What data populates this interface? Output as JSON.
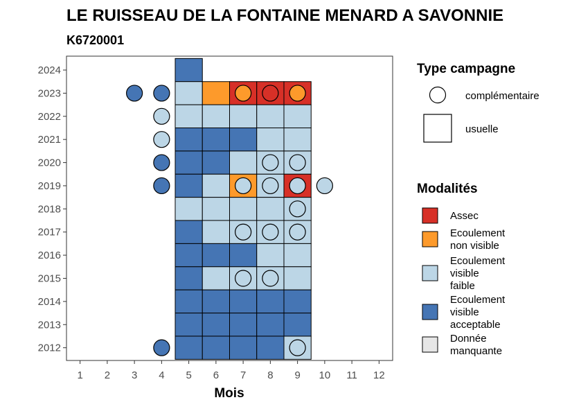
{
  "chart_data": {
    "type": "heatmap",
    "title": "LE RUISSEAU DE LA FONTAINE MENARD A SAVONNIE",
    "subtitle": "K6720001",
    "xlabel": "Mois",
    "ylabel": "",
    "x_ticks": [
      1,
      2,
      3,
      4,
      5,
      6,
      7,
      8,
      9,
      10,
      11,
      12
    ],
    "y_ticks": [
      2012,
      2013,
      2014,
      2015,
      2016,
      2017,
      2018,
      2019,
      2020,
      2021,
      2022,
      2023,
      2024
    ],
    "xlim": [
      0.5,
      12.5
    ],
    "ylim": [
      2011.45,
      2024.6
    ],
    "grid": false,
    "legend_position": "right",
    "modalites": [
      {
        "key": "assec",
        "label": "Assec",
        "color": "#d73027"
      },
      {
        "key": "nonvis",
        "label": "Ecoulement non visible",
        "color": "#fd9a2b"
      },
      {
        "key": "faible",
        "label": "Ecoulement visible faible",
        "color": "#bcd6e6"
      },
      {
        "key": "accept",
        "label": "Ecoulement visible acceptable",
        "color": "#4575b4"
      },
      {
        "key": "manq",
        "label": "Donnée manquante",
        "color": "#e6e6e6"
      }
    ],
    "campagnes": [
      {
        "key": "comp",
        "label": "complémentaire",
        "shape": "circle"
      },
      {
        "key": "usu",
        "label": "usuelle",
        "shape": "square"
      }
    ],
    "legend_titles": {
      "campagne": "Type campagne",
      "modalites": "Modalités"
    },
    "legend_lines": {
      "assec": [
        "Assec"
      ],
      "nonvis": [
        "Ecoulement",
        "non visible"
      ],
      "faible": [
        "Ecoulement",
        "visible",
        "faible"
      ],
      "accept": [
        "Ecoulement",
        "visible",
        "acceptable"
      ],
      "manq": [
        "Donnée",
        "manquante"
      ]
    },
    "points": [
      {
        "year": 2024,
        "month": 5,
        "campaign": "usuelle",
        "modalite": "accept"
      },
      {
        "year": 2023,
        "month": 3,
        "campaign": "complementaire",
        "modalite": "accept"
      },
      {
        "year": 2023,
        "month": 4,
        "campaign": "complementaire",
        "modalite": "accept"
      },
      {
        "year": 2023,
        "month": 5,
        "campaign": "usuelle",
        "modalite": "faible"
      },
      {
        "year": 2023,
        "month": 6,
        "campaign": "usuelle",
        "modalite": "nonvis"
      },
      {
        "year": 2023,
        "month": 7,
        "campaign": "usuelle",
        "modalite": "assec"
      },
      {
        "year": 2023,
        "month": 7,
        "campaign": "complementaire",
        "modalite": "nonvis"
      },
      {
        "year": 2023,
        "month": 8,
        "campaign": "usuelle",
        "modalite": "assec"
      },
      {
        "year": 2023,
        "month": 8,
        "campaign": "complementaire",
        "modalite": "assec"
      },
      {
        "year": 2023,
        "month": 9,
        "campaign": "usuelle",
        "modalite": "assec"
      },
      {
        "year": 2023,
        "month": 9,
        "campaign": "complementaire",
        "modalite": "nonvis"
      },
      {
        "year": 2022,
        "month": 4,
        "campaign": "complementaire",
        "modalite": "faible"
      },
      {
        "year": 2022,
        "month": 5,
        "campaign": "usuelle",
        "modalite": "faible"
      },
      {
        "year": 2022,
        "month": 6,
        "campaign": "usuelle",
        "modalite": "faible"
      },
      {
        "year": 2022,
        "month": 7,
        "campaign": "usuelle",
        "modalite": "faible"
      },
      {
        "year": 2022,
        "month": 8,
        "campaign": "usuelle",
        "modalite": "faible"
      },
      {
        "year": 2022,
        "month": 9,
        "campaign": "usuelle",
        "modalite": "faible"
      },
      {
        "year": 2021,
        "month": 4,
        "campaign": "complementaire",
        "modalite": "faible"
      },
      {
        "year": 2021,
        "month": 5,
        "campaign": "usuelle",
        "modalite": "accept"
      },
      {
        "year": 2021,
        "month": 6,
        "campaign": "usuelle",
        "modalite": "accept"
      },
      {
        "year": 2021,
        "month": 7,
        "campaign": "usuelle",
        "modalite": "accept"
      },
      {
        "year": 2021,
        "month": 8,
        "campaign": "usuelle",
        "modalite": "faible"
      },
      {
        "year": 2021,
        "month": 9,
        "campaign": "usuelle",
        "modalite": "faible"
      },
      {
        "year": 2020,
        "month": 4,
        "campaign": "complementaire",
        "modalite": "accept"
      },
      {
        "year": 2020,
        "month": 5,
        "campaign": "usuelle",
        "modalite": "accept"
      },
      {
        "year": 2020,
        "month": 6,
        "campaign": "usuelle",
        "modalite": "accept"
      },
      {
        "year": 2020,
        "month": 7,
        "campaign": "usuelle",
        "modalite": "faible"
      },
      {
        "year": 2020,
        "month": 8,
        "campaign": "usuelle",
        "modalite": "faible"
      },
      {
        "year": 2020,
        "month": 8,
        "campaign": "complementaire",
        "modalite": "faible"
      },
      {
        "year": 2020,
        "month": 9,
        "campaign": "usuelle",
        "modalite": "faible"
      },
      {
        "year": 2020,
        "month": 9,
        "campaign": "complementaire",
        "modalite": "faible"
      },
      {
        "year": 2019,
        "month": 4,
        "campaign": "complementaire",
        "modalite": "accept"
      },
      {
        "year": 2019,
        "month": 5,
        "campaign": "usuelle",
        "modalite": "accept"
      },
      {
        "year": 2019,
        "month": 6,
        "campaign": "usuelle",
        "modalite": "faible"
      },
      {
        "year": 2019,
        "month": 7,
        "campaign": "usuelle",
        "modalite": "nonvis"
      },
      {
        "year": 2019,
        "month": 7,
        "campaign": "complementaire",
        "modalite": "faible"
      },
      {
        "year": 2019,
        "month": 8,
        "campaign": "usuelle",
        "modalite": "faible"
      },
      {
        "year": 2019,
        "month": 8,
        "campaign": "complementaire",
        "modalite": "faible"
      },
      {
        "year": 2019,
        "month": 9,
        "campaign": "usuelle",
        "modalite": "assec"
      },
      {
        "year": 2019,
        "month": 9,
        "campaign": "complementaire",
        "modalite": "faible"
      },
      {
        "year": 2019,
        "month": 10,
        "campaign": "complementaire",
        "modalite": "faible"
      },
      {
        "year": 2018,
        "month": 5,
        "campaign": "usuelle",
        "modalite": "faible"
      },
      {
        "year": 2018,
        "month": 6,
        "campaign": "usuelle",
        "modalite": "faible"
      },
      {
        "year": 2018,
        "month": 7,
        "campaign": "usuelle",
        "modalite": "faible"
      },
      {
        "year": 2018,
        "month": 8,
        "campaign": "usuelle",
        "modalite": "faible"
      },
      {
        "year": 2018,
        "month": 9,
        "campaign": "usuelle",
        "modalite": "faible"
      },
      {
        "year": 2018,
        "month": 9,
        "campaign": "complementaire",
        "modalite": "faible"
      },
      {
        "year": 2017,
        "month": 5,
        "campaign": "usuelle",
        "modalite": "accept"
      },
      {
        "year": 2017,
        "month": 6,
        "campaign": "usuelle",
        "modalite": "faible"
      },
      {
        "year": 2017,
        "month": 7,
        "campaign": "usuelle",
        "modalite": "faible"
      },
      {
        "year": 2017,
        "month": 7,
        "campaign": "complementaire",
        "modalite": "faible"
      },
      {
        "year": 2017,
        "month": 8,
        "campaign": "usuelle",
        "modalite": "faible"
      },
      {
        "year": 2017,
        "month": 8,
        "campaign": "complementaire",
        "modalite": "faible"
      },
      {
        "year": 2017,
        "month": 9,
        "campaign": "usuelle",
        "modalite": "faible"
      },
      {
        "year": 2017,
        "month": 9,
        "campaign": "complementaire",
        "modalite": "faible"
      },
      {
        "year": 2016,
        "month": 5,
        "campaign": "usuelle",
        "modalite": "accept"
      },
      {
        "year": 2016,
        "month": 6,
        "campaign": "usuelle",
        "modalite": "accept"
      },
      {
        "year": 2016,
        "month": 7,
        "campaign": "usuelle",
        "modalite": "accept"
      },
      {
        "year": 2016,
        "month": 8,
        "campaign": "usuelle",
        "modalite": "faible"
      },
      {
        "year": 2016,
        "month": 9,
        "campaign": "usuelle",
        "modalite": "faible"
      },
      {
        "year": 2015,
        "month": 5,
        "campaign": "usuelle",
        "modalite": "accept"
      },
      {
        "year": 2015,
        "month": 6,
        "campaign": "usuelle",
        "modalite": "faible"
      },
      {
        "year": 2015,
        "month": 7,
        "campaign": "usuelle",
        "modalite": "faible"
      },
      {
        "year": 2015,
        "month": 7,
        "campaign": "complementaire",
        "modalite": "faible"
      },
      {
        "year": 2015,
        "month": 8,
        "campaign": "usuelle",
        "modalite": "faible"
      },
      {
        "year": 2015,
        "month": 8,
        "campaign": "complementaire",
        "modalite": "faible"
      },
      {
        "year": 2015,
        "month": 9,
        "campaign": "usuelle",
        "modalite": "faible"
      },
      {
        "year": 2014,
        "month": 5,
        "campaign": "usuelle",
        "modalite": "accept"
      },
      {
        "year": 2014,
        "month": 6,
        "campaign": "usuelle",
        "modalite": "accept"
      },
      {
        "year": 2014,
        "month": 7,
        "campaign": "usuelle",
        "modalite": "accept"
      },
      {
        "year": 2014,
        "month": 8,
        "campaign": "usuelle",
        "modalite": "accept"
      },
      {
        "year": 2014,
        "month": 9,
        "campaign": "usuelle",
        "modalite": "accept"
      },
      {
        "year": 2013,
        "month": 5,
        "campaign": "usuelle",
        "modalite": "accept"
      },
      {
        "year": 2013,
        "month": 6,
        "campaign": "usuelle",
        "modalite": "accept"
      },
      {
        "year": 2013,
        "month": 7,
        "campaign": "usuelle",
        "modalite": "accept"
      },
      {
        "year": 2013,
        "month": 8,
        "campaign": "usuelle",
        "modalite": "accept"
      },
      {
        "year": 2013,
        "month": 9,
        "campaign": "usuelle",
        "modalite": "accept"
      },
      {
        "year": 2012,
        "month": 4,
        "campaign": "complementaire",
        "modalite": "accept"
      },
      {
        "year": 2012,
        "month": 5,
        "campaign": "usuelle",
        "modalite": "accept"
      },
      {
        "year": 2012,
        "month": 6,
        "campaign": "usuelle",
        "modalite": "accept"
      },
      {
        "year": 2012,
        "month": 7,
        "campaign": "usuelle",
        "modalite": "accept"
      },
      {
        "year": 2012,
        "month": 8,
        "campaign": "usuelle",
        "modalite": "accept"
      },
      {
        "year": 2012,
        "month": 9,
        "campaign": "usuelle",
        "modalite": "faible"
      },
      {
        "year": 2012,
        "month": 9,
        "campaign": "complementaire",
        "modalite": "faible"
      }
    ]
  }
}
